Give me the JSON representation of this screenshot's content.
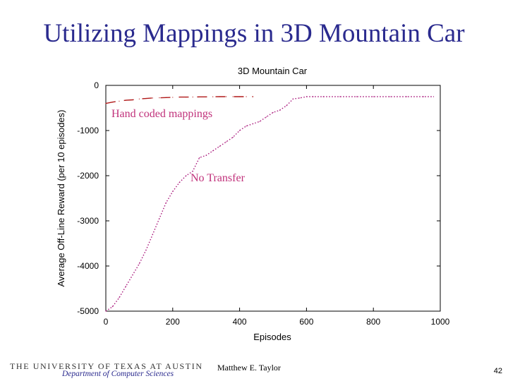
{
  "slide": {
    "title": "Utilizing Mappings in 3D Mountain Car",
    "university": "THE UNIVERSITY OF TEXAS AT AUSTIN",
    "department": "Department of Computer Sciences",
    "author": "Matthew E. Taylor",
    "page_number": "42"
  },
  "chart_data": {
    "type": "line",
    "title": "3D Mountain Car",
    "xlabel": "Episodes",
    "ylabel": "Average Off-Line Reward (per 10 episodes)",
    "xlim": [
      0,
      1000
    ],
    "ylim": [
      -5000,
      0
    ],
    "xticks": [
      0,
      200,
      400,
      600,
      800,
      1000
    ],
    "yticks": [
      0,
      -1000,
      -2000,
      -3000,
      -4000,
      -5000
    ],
    "grid": false,
    "annotations": [
      "Hand coded mappings",
      "No Transfer"
    ],
    "series": [
      {
        "style": "dashed",
        "color": "#b01818",
        "x": [
          0,
          20,
          40,
          60,
          80,
          100,
          120,
          140,
          160,
          180,
          200,
          220,
          240,
          260,
          280,
          300,
          320,
          340,
          360,
          380,
          400,
          420,
          440
        ],
        "y": [
          -400,
          -370,
          -350,
          -330,
          -320,
          -300,
          -290,
          -280,
          -275,
          -270,
          -265,
          -260,
          -260,
          -258,
          -255,
          -255,
          -252,
          -250,
          -250,
          -250,
          -250,
          -250,
          -250
        ]
      },
      {
        "style": "dotted",
        "color": "#a8157a",
        "x": [
          0,
          20,
          40,
          60,
          80,
          100,
          120,
          140,
          160,
          180,
          200,
          220,
          240,
          260,
          280,
          300,
          320,
          340,
          360,
          380,
          400,
          420,
          440,
          460,
          480,
          500,
          520,
          540,
          560,
          580,
          600,
          620,
          650,
          700,
          750,
          800,
          850,
          900,
          950,
          980
        ],
        "y": [
          -5000,
          -4900,
          -4700,
          -4450,
          -4200,
          -3950,
          -3650,
          -3300,
          -2950,
          -2600,
          -2350,
          -2150,
          -2000,
          -1900,
          -1600,
          -1550,
          -1450,
          -1350,
          -1250,
          -1150,
          -1000,
          -900,
          -850,
          -800,
          -700,
          -600,
          -550,
          -450,
          -300,
          -280,
          -250,
          -250,
          -250,
          -250,
          -250,
          -250,
          -250,
          -250,
          -250,
          -250
        ]
      }
    ]
  }
}
